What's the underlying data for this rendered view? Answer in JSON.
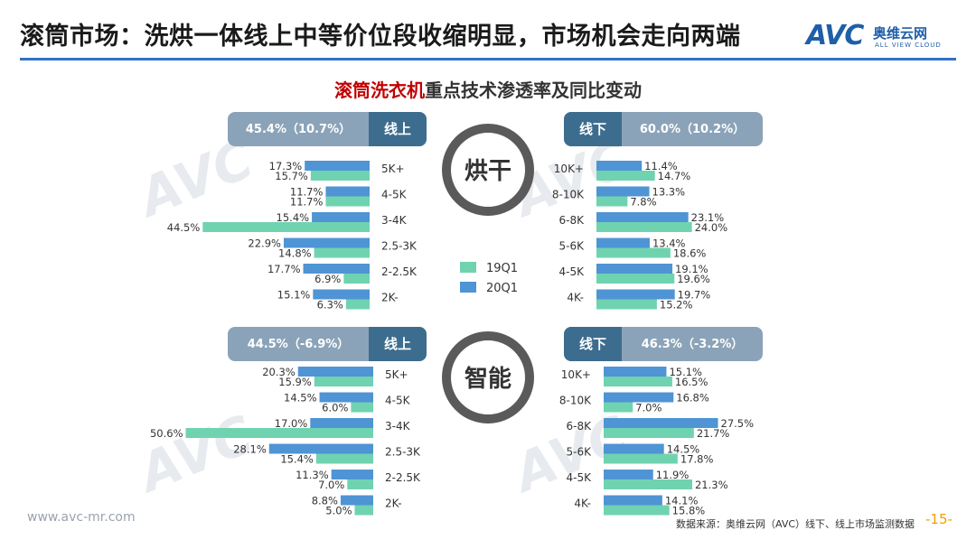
{
  "header": {
    "title": "滚筒市场：洗烘一体线上中等价位段收缩明显，市场机会走向两端",
    "brand_logo": "AVC",
    "brand_cn": "奥维云网",
    "brand_en": "ALL VIEW CLOUD"
  },
  "subtitle": {
    "highlight": "滚筒洗衣机",
    "rest": "重点技术渗透率及同比变动"
  },
  "footer": {
    "url": "www.avc-mr.com",
    "source": "数据来源：奥维云网（AVC）线下、线上市场监测数据",
    "page": "-15-"
  },
  "colors": {
    "series_19q1": "#6fd3b0",
    "series_20q1": "#4f94d4",
    "header_dark": "#3d6d8e",
    "header_light": "#8ba3b8",
    "accent_red": "#c00000"
  },
  "chart_data": [
    {
      "id": "dry_online",
      "type": "bar",
      "title": "烘干",
      "channel": "线上",
      "summary": "45.4%（10.7%）",
      "categories": [
        "5K+",
        "4-5K",
        "3-4K",
        "2.5-3K",
        "2-2.5K",
        "2K-"
      ],
      "series": [
        {
          "name": "19Q1",
          "values": [
            15.7,
            11.7,
            44.5,
            14.8,
            6.9,
            6.3
          ]
        },
        {
          "name": "20Q1",
          "values": [
            17.3,
            11.7,
            15.4,
            22.9,
            17.7,
            15.1
          ]
        }
      ],
      "value_labels": [
        [
          "15.7%",
          "11.7%",
          "44.5%",
          "14.8%",
          "6.9%",
          "6.3%"
        ],
        [
          "17.3%",
          "11.7%",
          "15.4%",
          "22.9%",
          "17.7%",
          "15.1%"
        ]
      ],
      "orientation": "horizontal-left",
      "xlim": [
        0,
        100
      ]
    },
    {
      "id": "dry_offline",
      "type": "bar",
      "title": "烘干",
      "channel": "线下",
      "summary": "60.0%（10.2%）",
      "categories": [
        "10K+",
        "8-10K",
        "6-8K",
        "5-6K",
        "4-5K",
        "4K-"
      ],
      "series": [
        {
          "name": "19Q1",
          "values": [
            14.7,
            7.8,
            24.0,
            18.6,
            19.6,
            15.2
          ]
        },
        {
          "name": "20Q1",
          "values": [
            11.4,
            13.3,
            23.1,
            13.4,
            19.1,
            19.7
          ]
        }
      ],
      "value_labels": [
        [
          "14.7%",
          "7.8%",
          "24.0%",
          "18.6%",
          "19.6%",
          "15.2%"
        ],
        [
          "11.4%",
          "13.3%",
          "23.1%",
          "13.4%",
          "19.1%",
          "19.7%"
        ]
      ],
      "orientation": "horizontal-right",
      "xlim": [
        0,
        100
      ]
    },
    {
      "id": "smart_online",
      "type": "bar",
      "title": "智能",
      "channel": "线上",
      "summary": "44.5%（-6.9%）",
      "categories": [
        "5K+",
        "4-5K",
        "3-4K",
        "2.5-3K",
        "2-2.5K",
        "2K-"
      ],
      "series": [
        {
          "name": "19Q1",
          "values": [
            15.9,
            6.0,
            50.6,
            15.4,
            7.0,
            5.0
          ]
        },
        {
          "name": "20Q1",
          "values": [
            20.3,
            14.5,
            17.0,
            28.1,
            11.3,
            8.8
          ]
        }
      ],
      "value_labels": [
        [
          "15.9%",
          "6.0%",
          "50.6%",
          "15.4%",
          "7.0%",
          "5.0%"
        ],
        [
          "20.3%",
          "14.5%",
          "17.0%",
          "28.1%",
          "11.3%",
          "8.8%"
        ]
      ],
      "orientation": "horizontal-left",
      "xlim": [
        0,
        100
      ]
    },
    {
      "id": "smart_offline",
      "type": "bar",
      "title": "智能",
      "channel": "线下",
      "summary": "46.3%（-3.2%）",
      "categories": [
        "10K+",
        "8-10K",
        "6-8K",
        "5-6K",
        "4-5K",
        "4K-"
      ],
      "series": [
        {
          "name": "19Q1",
          "values": [
            16.5,
            7.0,
            21.7,
            17.8,
            21.3,
            15.8
          ]
        },
        {
          "name": "20Q1",
          "values": [
            15.1,
            16.8,
            27.5,
            14.5,
            11.9,
            14.1
          ]
        }
      ],
      "value_labels": [
        [
          "16.5%",
          "7.0%",
          "21.7%",
          "17.8%",
          "21.3%",
          "15.8%"
        ],
        [
          "15.1%",
          "16.8%",
          "27.5%",
          "14.5%",
          "11.9%",
          "14.1%"
        ]
      ],
      "orientation": "horizontal-right",
      "xlim": [
        0,
        100
      ]
    }
  ],
  "rings": [
    "烘干",
    "智能"
  ],
  "legend": [
    "19Q1",
    "20Q1"
  ]
}
